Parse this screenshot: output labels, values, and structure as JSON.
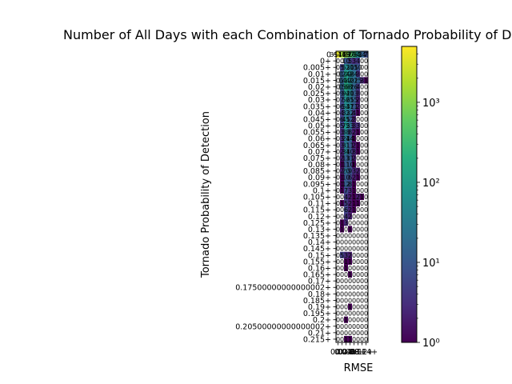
{
  "chart_data": {
    "type": "heatmap",
    "title": "Number of All Days with each Combination of Tornado Probability of Detection and RMSE",
    "xlabel": "RMSE",
    "ylabel": "Tornado Probability of Detection",
    "x_categories": [
      "0",
      "0.02+",
      "0.04+",
      "0.06+",
      "0.08+",
      "0.1+",
      "0.12+",
      "0.14+"
    ],
    "y_categories": [
      "0",
      "0+",
      "0.005+",
      "0.01+",
      "0.015+",
      "0.02+",
      "0.025+",
      "0.03+",
      "0.035+",
      "0.04+",
      "0.045+",
      "0.05+",
      "0.055+",
      "0.06+",
      "0.065+",
      "0.07+",
      "0.075+",
      "0.08+",
      "0.085+",
      "0.09+",
      "0.095+",
      "0.1+",
      "0.105+",
      "0.11+",
      "0.115+",
      "0.12+",
      "0.125+",
      "0.13+",
      "0.135+",
      "0.14+",
      "0.145+",
      "0.15+",
      "0.155+",
      "0.16+",
      "0.165+",
      "0.17+",
      "0.17500000000000002+",
      "0.18+",
      "0.185+",
      "0.19+",
      "0.195+",
      "0.2+",
      "0.20500000000000002+",
      "0.21+",
      "0.215+"
    ],
    "values": [
      [
        3514,
        1469,
        1157,
        510,
        264,
        63,
        14,
        7
      ],
      [
        0,
        0,
        10,
        5,
        3,
        4,
        0,
        0
      ],
      [
        0,
        5,
        52,
        30,
        15,
        10,
        0,
        0
      ],
      [
        0,
        12,
        102,
        48,
        24,
        3,
        0,
        0
      ],
      [
        0,
        14,
        112,
        40,
        22,
        15,
        3,
        1
      ],
      [
        0,
        15,
        168,
        82,
        16,
        4,
        0,
        0
      ],
      [
        0,
        9,
        92,
        40,
        13,
        3,
        0,
        0
      ],
      [
        0,
        7,
        56,
        25,
        15,
        2,
        0,
        0
      ],
      [
        0,
        6,
        54,
        37,
        11,
        2,
        0,
        0
      ],
      [
        0,
        4,
        33,
        22,
        4,
        1,
        0,
        0
      ],
      [
        0,
        6,
        45,
        12,
        2,
        0,
        0,
        0
      ],
      [
        0,
        5,
        75,
        23,
        3,
        3,
        0,
        0
      ],
      [
        0,
        3,
        38,
        8,
        2,
        1,
        0,
        0
      ],
      [
        0,
        3,
        24,
        14,
        1,
        0,
        0,
        0
      ],
      [
        0,
        3,
        31,
        11,
        2,
        1,
        0,
        0
      ],
      [
        0,
        2,
        34,
        10,
        3,
        1,
        0,
        0
      ],
      [
        0,
        2,
        13,
        11,
        2,
        0,
        0,
        0
      ],
      [
        0,
        1,
        11,
        10,
        1,
        0,
        0,
        0
      ],
      [
        0,
        2,
        20,
        9,
        3,
        2,
        0,
        0
      ],
      [
        0,
        1,
        10,
        6,
        2,
        1,
        0,
        0
      ],
      [
        0,
        1,
        12,
        8,
        1,
        0,
        0,
        0
      ],
      [
        0,
        1,
        7,
        3,
        1,
        0,
        0,
        0
      ],
      [
        0,
        0,
        4,
        2,
        1,
        2,
        1,
        0
      ],
      [
        0,
        1,
        5,
        2,
        1,
        1,
        0,
        0
      ],
      [
        0,
        0,
        6,
        2,
        1,
        0,
        0,
        0
      ],
      [
        0,
        0,
        4,
        2,
        0,
        0,
        0,
        0
      ],
      [
        0,
        1,
        3,
        0,
        0,
        0,
        0,
        0
      ],
      [
        0,
        1,
        0,
        1,
        0,
        0,
        0,
        0
      ],
      [
        0,
        0,
        0,
        0,
        0,
        0,
        0,
        0
      ],
      [
        0,
        0,
        0,
        0,
        0,
        0,
        0,
        0
      ],
      [
        0,
        0,
        0,
        0,
        0,
        0,
        0,
        0
      ],
      [
        0,
        5,
        3,
        2,
        0,
        0,
        0,
        0
      ],
      [
        0,
        0,
        1,
        1,
        0,
        0,
        0,
        0
      ],
      [
        0,
        0,
        1,
        0,
        0,
        0,
        0,
        0
      ],
      [
        0,
        0,
        0,
        1,
        0,
        0,
        0,
        0
      ],
      [
        0,
        0,
        0,
        0,
        0,
        0,
        0,
        0
      ],
      [
        0,
        0,
        0,
        0,
        0,
        0,
        0,
        0
      ],
      [
        0,
        0,
        0,
        0,
        0,
        0,
        0,
        0
      ],
      [
        0,
        0,
        0,
        0,
        0,
        0,
        0,
        0
      ],
      [
        0,
        0,
        0,
        1,
        0,
        0,
        0,
        0
      ],
      [
        0,
        0,
        0,
        0,
        0,
        0,
        0,
        0
      ],
      [
        0,
        0,
        1,
        0,
        0,
        0,
        0,
        0
      ],
      [
        0,
        0,
        0,
        0,
        0,
        0,
        0,
        0
      ],
      [
        0,
        0,
        0,
        0,
        0,
        0,
        0,
        0
      ],
      [
        0,
        0,
        1,
        1,
        0,
        0,
        0,
        0
      ]
    ],
    "colorbar": {
      "scale": "log",
      "range": [
        1,
        5000
      ],
      "ticks": [
        1,
        10,
        100,
        1000
      ],
      "tick_labels": [
        "10⁰",
        "10¹",
        "10²",
        "10³"
      ],
      "colormap": "viridis"
    },
    "zero_color": "#ffffff",
    "grid": false
  }
}
